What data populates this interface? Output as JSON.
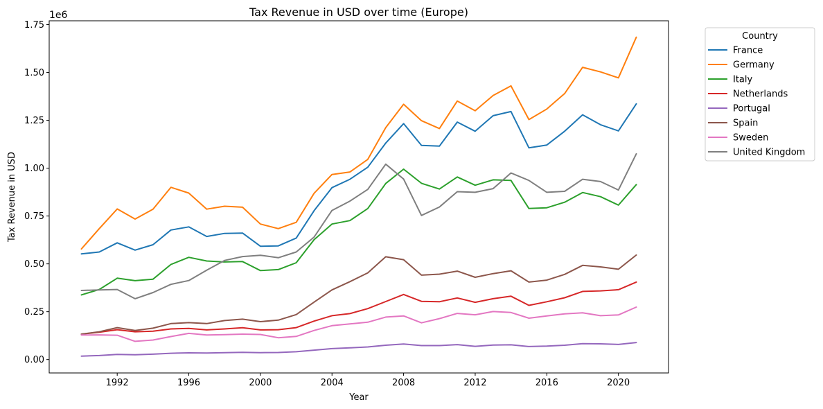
{
  "chart_data": {
    "type": "line",
    "title": "Tax Revenue in USD over time (Europe)",
    "xlabel": "Year",
    "ylabel": "Tax Revenue in USD",
    "y_offset_label": "1e6",
    "xlim": [
      1988.2,
      2022.8
    ],
    "ylim": [
      -0.07,
      1.77
    ],
    "x_ticks": [
      1992,
      1996,
      2000,
      2004,
      2008,
      2012,
      2016,
      2020
    ],
    "y_ticks": [
      0.0,
      0.25,
      0.5,
      0.75,
      1.0,
      1.25,
      1.5,
      1.75
    ],
    "y_tick_labels": [
      "0.00",
      "0.25",
      "0.50",
      "0.75",
      "1.00",
      "1.25",
      "1.50",
      "1.75"
    ],
    "grid": false,
    "legend": {
      "title": "Country",
      "placement": "outside-top-right"
    },
    "x": [
      1990,
      1991,
      1992,
      1993,
      1994,
      1995,
      1996,
      1997,
      1998,
      1999,
      2000,
      2001,
      2002,
      2003,
      2004,
      2005,
      2006,
      2007,
      2008,
      2009,
      2010,
      2011,
      2012,
      2013,
      2014,
      2015,
      2016,
      2017,
      2018,
      2019,
      2020,
      2021
    ],
    "series": [
      {
        "name": "France",
        "color": "#1f77b4",
        "values": [
          0.552,
          0.562,
          0.61,
          0.572,
          0.6,
          0.677,
          0.693,
          0.643,
          0.659,
          0.661,
          0.592,
          0.594,
          0.635,
          0.778,
          0.898,
          0.942,
          1.005,
          1.131,
          1.233,
          1.119,
          1.115,
          1.241,
          1.193,
          1.274,
          1.296,
          1.106,
          1.121,
          1.193,
          1.279,
          1.227,
          1.195,
          1.336
        ]
      },
      {
        "name": "Germany",
        "color": "#ff7f0e",
        "values": [
          0.578,
          0.684,
          0.787,
          0.734,
          0.786,
          0.9,
          0.87,
          0.786,
          0.801,
          0.796,
          0.708,
          0.684,
          0.717,
          0.869,
          0.967,
          0.98,
          1.046,
          1.212,
          1.334,
          1.248,
          1.207,
          1.351,
          1.3,
          1.38,
          1.43,
          1.254,
          1.309,
          1.39,
          1.527,
          1.503,
          1.472,
          1.684
        ]
      },
      {
        "name": "Italy",
        "color": "#2ca02c",
        "values": [
          0.338,
          0.366,
          0.425,
          0.412,
          0.42,
          0.497,
          0.534,
          0.515,
          0.51,
          0.512,
          0.465,
          0.47,
          0.506,
          0.626,
          0.708,
          0.726,
          0.789,
          0.92,
          0.995,
          0.921,
          0.891,
          0.954,
          0.911,
          0.939,
          0.936,
          0.789,
          0.793,
          0.822,
          0.873,
          0.851,
          0.807,
          0.914
        ]
      },
      {
        "name": "Netherlands",
        "color": "#d62728",
        "values": [
          0.133,
          0.143,
          0.156,
          0.145,
          0.148,
          0.16,
          0.163,
          0.155,
          0.16,
          0.166,
          0.155,
          0.156,
          0.167,
          0.201,
          0.229,
          0.24,
          0.266,
          0.303,
          0.34,
          0.304,
          0.302,
          0.322,
          0.299,
          0.318,
          0.331,
          0.283,
          0.302,
          0.323,
          0.356,
          0.359,
          0.365,
          0.405
        ]
      },
      {
        "name": "Portugal",
        "color": "#9467bd",
        "values": [
          0.018,
          0.021,
          0.027,
          0.025,
          0.028,
          0.033,
          0.035,
          0.034,
          0.036,
          0.038,
          0.036,
          0.037,
          0.041,
          0.049,
          0.057,
          0.061,
          0.066,
          0.075,
          0.081,
          0.073,
          0.073,
          0.078,
          0.069,
          0.076,
          0.077,
          0.068,
          0.07,
          0.075,
          0.083,
          0.082,
          0.079,
          0.089
        ]
      },
      {
        "name": "Spain",
        "color": "#8c564b",
        "values": [
          0.133,
          0.145,
          0.167,
          0.152,
          0.164,
          0.188,
          0.193,
          0.188,
          0.204,
          0.211,
          0.198,
          0.206,
          0.235,
          0.3,
          0.364,
          0.407,
          0.453,
          0.537,
          0.522,
          0.441,
          0.446,
          0.462,
          0.43,
          0.449,
          0.464,
          0.405,
          0.415,
          0.445,
          0.492,
          0.484,
          0.472,
          0.546
        ]
      },
      {
        "name": "Sweden",
        "color": "#e377c2",
        "values": [
          0.128,
          0.129,
          0.127,
          0.095,
          0.102,
          0.12,
          0.137,
          0.128,
          0.13,
          0.133,
          0.131,
          0.114,
          0.121,
          0.152,
          0.177,
          0.186,
          0.195,
          0.222,
          0.228,
          0.192,
          0.214,
          0.241,
          0.234,
          0.251,
          0.246,
          0.216,
          0.228,
          0.239,
          0.244,
          0.229,
          0.233,
          0.274
        ]
      },
      {
        "name": "United Kingdom",
        "color": "#7f7f7f",
        "values": [
          0.361,
          0.364,
          0.366,
          0.318,
          0.35,
          0.393,
          0.413,
          0.467,
          0.518,
          0.538,
          0.545,
          0.532,
          0.562,
          0.64,
          0.779,
          0.828,
          0.889,
          1.021,
          0.943,
          0.753,
          0.797,
          0.877,
          0.874,
          0.893,
          0.975,
          0.936,
          0.874,
          0.879,
          0.942,
          0.93,
          0.886,
          1.075
        ]
      }
    ]
  }
}
